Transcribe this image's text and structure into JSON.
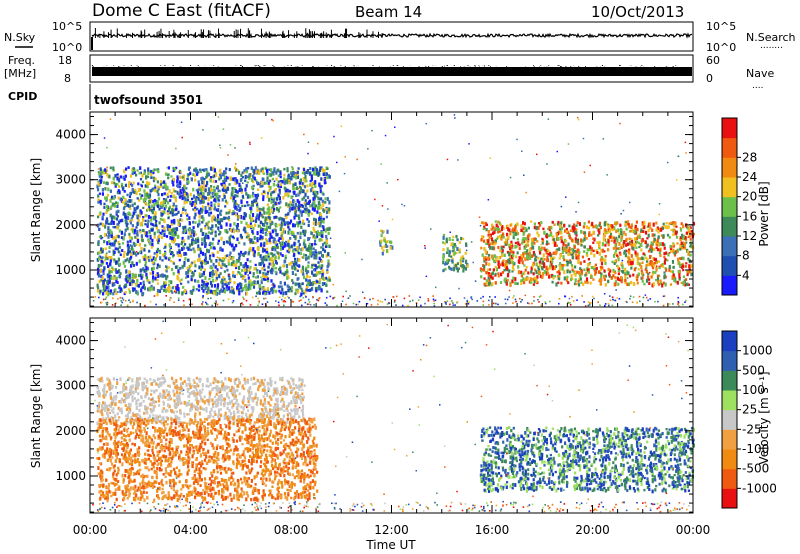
{
  "header": {
    "station": "Dome C East (fitACF)",
    "beam": "Beam 14",
    "date": "10/Oct/2013"
  },
  "side_labels": {
    "nsky": "N.Sky",
    "nsearch": "N.Search",
    "freq": "Freq.",
    "freq_unit": "[MHz]",
    "nave": "Nave",
    "cpid": "CPID",
    "dots1": "........",
    "dots2": "...."
  },
  "top_ticks": {
    "noise_left": [
      "10^5",
      "10^0"
    ],
    "noise_right": [
      "10^5",
      "10^0"
    ],
    "freq_left": [
      "18",
      "8"
    ],
    "freq_right": [
      "60",
      "0"
    ]
  },
  "cpid_text": "twofsound 3501",
  "colors": {
    "power_scale": [
      "#1a1aff",
      "#1f4fb0",
      "#3b6fb7",
      "#3c8a5a",
      "#6cc04a",
      "#f0c020",
      "#f08a10",
      "#f05a10",
      "#e81010"
    ],
    "velocity_scale": [
      "#e81010",
      "#f05a10",
      "#f08a10",
      "#f0a040",
      "#c8c8c8",
      "#9ee060",
      "#3c8a5a",
      "#2f5fb0",
      "#1a3fc0"
    ]
  },
  "chart_data": [
    {
      "type": "heatmap",
      "panel": "power",
      "ylabel": "Slant Range [km]",
      "yticks": [
        "1000",
        "2000",
        "3000",
        "4000"
      ],
      "ylim": [
        180,
        4500
      ],
      "xlim": [
        "00:00",
        "24:00"
      ],
      "colorbar": {
        "label": "Power [dB]",
        "ticks": [
          "4",
          "8",
          "12",
          "16",
          "20",
          "24",
          "28"
        ],
        "range": [
          0,
          30
        ]
      },
      "echo_regions": [
        {
          "t_start": "00:15",
          "t_end": "09:30",
          "range_km": [
            500,
            3300
          ],
          "level": "low-mid"
        },
        {
          "t_start": "11:30",
          "t_end": "12:00",
          "range_km": [
            1400,
            1900
          ],
          "level": "mid"
        },
        {
          "t_start": "14:00",
          "t_end": "15:00",
          "range_km": [
            1000,
            1800
          ],
          "level": "mid"
        },
        {
          "t_start": "15:30",
          "t_end": "24:00",
          "range_km": [
            700,
            2100
          ],
          "level": "high"
        }
      ]
    },
    {
      "type": "heatmap",
      "panel": "velocity",
      "ylabel": "Slant Range [km]",
      "yticks": [
        "1000",
        "2000",
        "3000",
        "4000"
      ],
      "ylim": [
        180,
        4500
      ],
      "xlabel": "Time UT",
      "xticks": [
        "00:00",
        "04:00",
        "08:00",
        "12:00",
        "16:00",
        "20:00",
        "00:00"
      ],
      "colorbar": {
        "label": "Velocity [m s⁻¹]",
        "ticks": [
          "-1000",
          "-500",
          "-100",
          "-25",
          "25",
          "100",
          "500",
          "1000"
        ]
      },
      "echo_regions": [
        {
          "t_start": "00:15",
          "t_end": "08:30",
          "range_km": [
            2200,
            3200
          ],
          "level": "grey"
        },
        {
          "t_start": "00:15",
          "t_end": "09:00",
          "range_km": [
            500,
            2300
          ],
          "level": "orange"
        },
        {
          "t_start": "15:30",
          "t_end": "24:00",
          "range_km": [
            700,
            2100
          ],
          "level": "green-blue"
        }
      ]
    }
  ]
}
